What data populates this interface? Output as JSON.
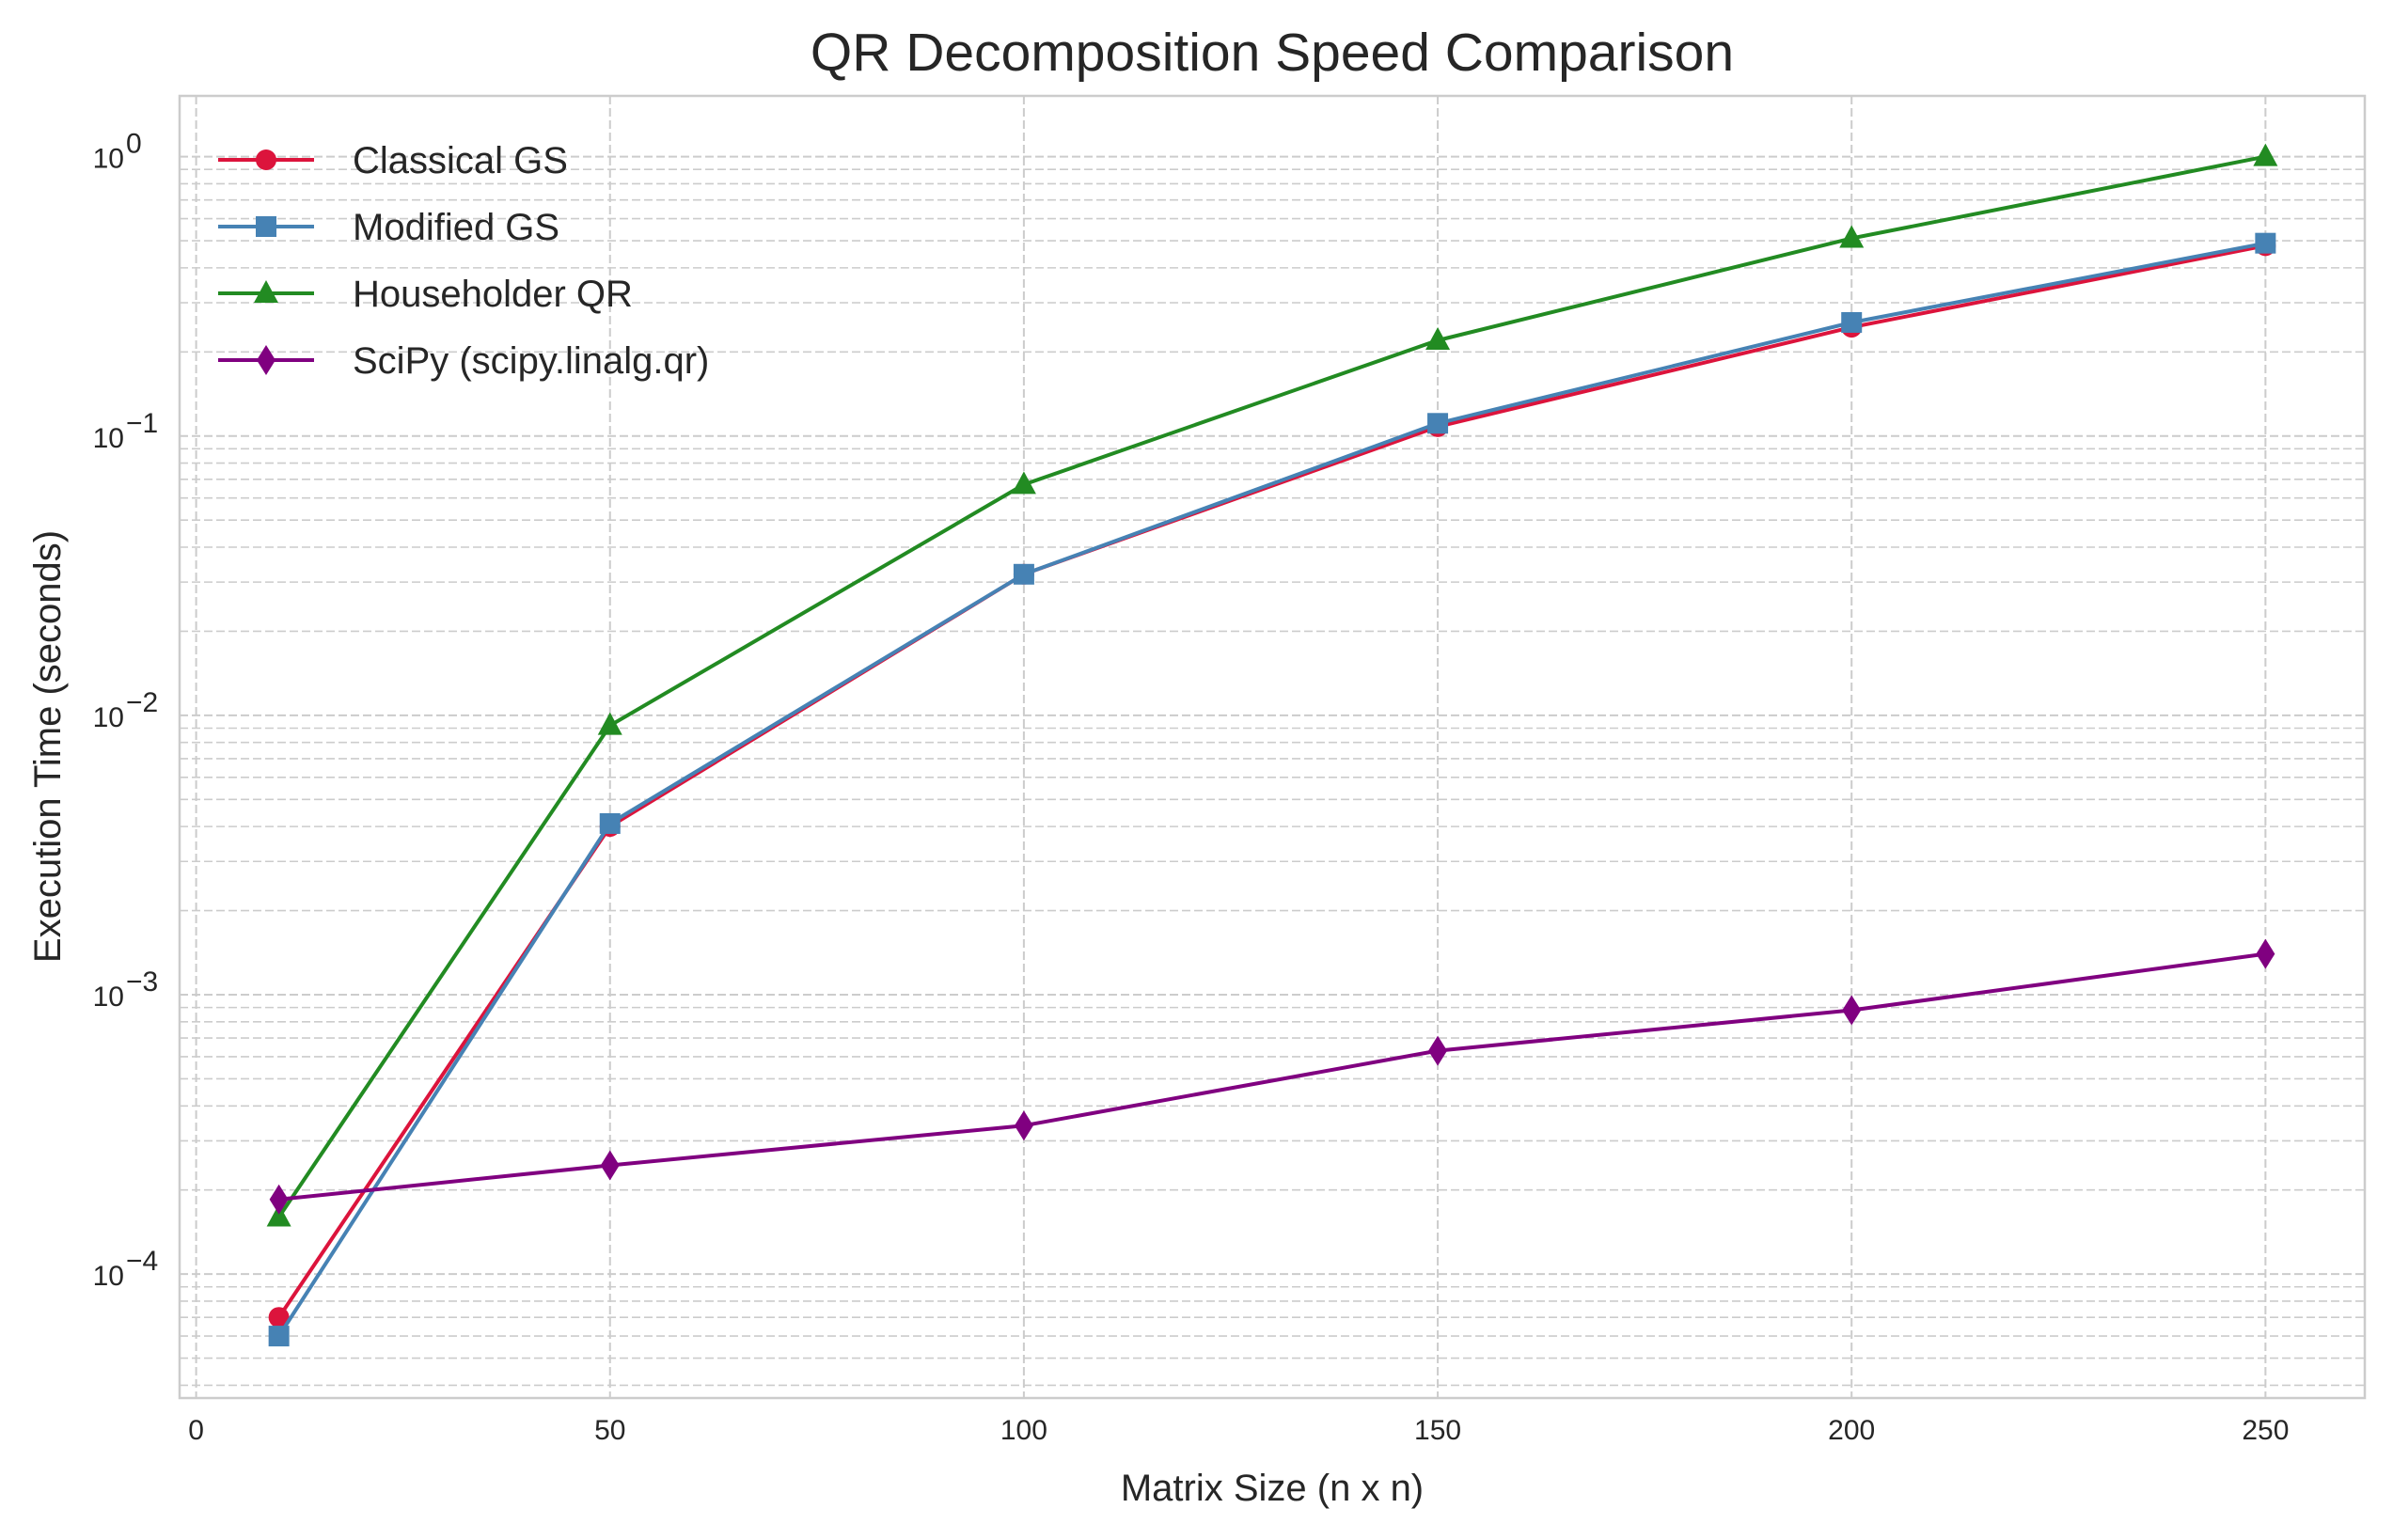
{
  "chart_data": {
    "type": "line",
    "title": "QR Decomposition Speed Comparison",
    "xlabel": "Matrix Size (n x n)",
    "ylabel": "Execution Time (seconds)",
    "x": [
      10,
      50,
      100,
      150,
      200,
      250
    ],
    "xlim": [
      -2,
      262
    ],
    "ylim": [
      3.6e-05,
      1.65
    ],
    "yscale": "log",
    "xticks": [
      0,
      50,
      100,
      150,
      200,
      250
    ],
    "xtick_labels": [
      "0",
      "50",
      "100",
      "150",
      "200",
      "250"
    ],
    "yticks": [
      {
        "value": 0.0001,
        "base": "10",
        "exp": "−4"
      },
      {
        "value": 0.001,
        "base": "10",
        "exp": "−3"
      },
      {
        "value": 0.01,
        "base": "10",
        "exp": "−2"
      },
      {
        "value": 0.1,
        "base": "10",
        "exp": "−1"
      },
      {
        "value": 1,
        "base": "10",
        "exp": "0"
      }
    ],
    "grid": true,
    "legend_position": "top-left",
    "series": [
      {
        "name": "Classical GS",
        "color": "#DC143C",
        "marker": "circle",
        "values": [
          7e-05,
          0.004,
          0.032,
          0.108,
          0.245,
          0.48
        ]
      },
      {
        "name": "Modified GS",
        "color": "#4682B4",
        "marker": "square",
        "values": [
          6e-05,
          0.0041,
          0.032,
          0.111,
          0.255,
          0.49
        ]
      },
      {
        "name": "Householder QR",
        "color": "#228B22",
        "marker": "triangle",
        "values": [
          0.00016,
          0.0092,
          0.067,
          0.22,
          0.51,
          1.0
        ]
      },
      {
        "name": "SciPy (scipy.linalg.qr)",
        "color": "#800080",
        "marker": "diamond",
        "values": [
          0.000185,
          0.000245,
          0.00034,
          0.00063,
          0.00088,
          0.0014
        ]
      }
    ]
  }
}
